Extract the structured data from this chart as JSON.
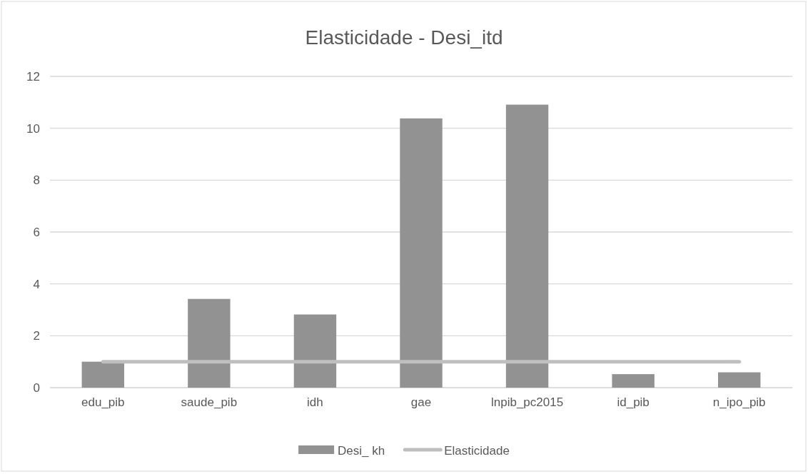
{
  "chart_data": {
    "type": "bar",
    "title": "Elasticidade - Desi_itd",
    "categories": [
      "edu_pib",
      "saude_pib",
      "idh",
      "gae",
      "lnpib_pc2015",
      "id_pib",
      "n_ipo_pib"
    ],
    "series": [
      {
        "name": "Desi_ kh",
        "color": "#929292",
        "values": [
          1.0,
          3.42,
          2.82,
          10.38,
          10.91,
          0.52,
          0.59
        ]
      },
      {
        "name": "Elasticidade",
        "type": "line",
        "color": "#bfbfbf",
        "values": [
          1,
          1,
          1,
          1,
          1,
          1,
          1
        ]
      }
    ],
    "ylim": [
      0,
      12
    ],
    "yticks": [
      0,
      2,
      4,
      6,
      8,
      10,
      12
    ],
    "grid": "y",
    "legend": "bottom",
    "marker": "none",
    "line_style": "solid"
  }
}
